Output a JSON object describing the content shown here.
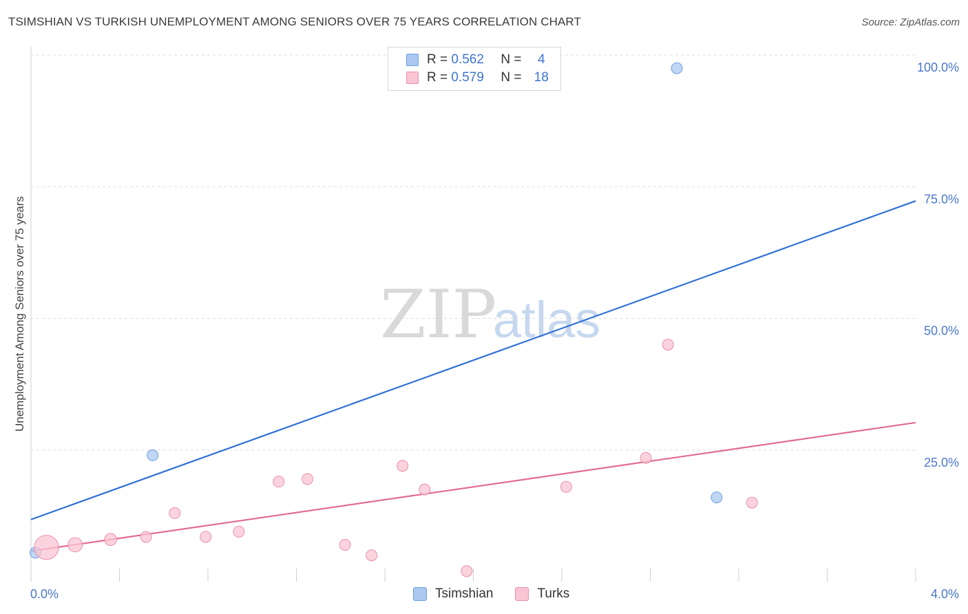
{
  "title": "TSIMSHIAN VS TURKISH UNEMPLOYMENT AMONG SENIORS OVER 75 YEARS CORRELATION CHART",
  "source": "Source: ZipAtlas.com",
  "watermark": {
    "zip": "ZIP",
    "atlas": "atlas"
  },
  "legend": {
    "rows": [
      {
        "r_label": "R = ",
        "r_value": "0.562",
        "n_label": "N = ",
        "n_value": "4",
        "color": "#aac8f0",
        "border": "#6f9fde"
      },
      {
        "r_label": "R = ",
        "r_value": "0.579",
        "n_label": "N = ",
        "n_value": "18",
        "color": "#f9c4d4",
        "border": "#e98fa9"
      }
    ]
  },
  "bottom_legend": [
    {
      "label": "Tsimshian",
      "color": "#aac8f0",
      "border": "#6f9fde"
    },
    {
      "label": "Turks",
      "color": "#f9c4d4",
      "border": "#e98fa9"
    }
  ],
  "chart_data": {
    "type": "scatter",
    "title": "TSIMSHIAN VS TURKISH UNEMPLOYMENT AMONG SENIORS OVER 75 YEARS CORRELATION CHART",
    "xlabel": "",
    "ylabel": "Unemployment Among Seniors over 75 years",
    "xlim": [
      0,
      4.0
    ],
    "ylim": [
      0,
      100
    ],
    "x_tick_labels": [
      "0.0%",
      "4.0%"
    ],
    "y_ticks": [
      25,
      50,
      75,
      100
    ],
    "y_tick_labels": [
      "25.0%",
      "50.0%",
      "75.0%",
      "100.0%"
    ],
    "grid": true,
    "series": [
      {
        "name": "Tsimshian",
        "color": "#aac8f0",
        "stroke": "#6f9fde",
        "line_color": "#2f6fd6",
        "trend": {
          "x": [
            0,
            4.0
          ],
          "y": [
            11.8,
            72.3
          ]
        },
        "points": [
          {
            "x": 0.02,
            "y": 5.5,
            "size": 1
          },
          {
            "x": 0.55,
            "y": 24.0,
            "size": 1
          },
          {
            "x": 2.92,
            "y": 97.5,
            "size": 1
          },
          {
            "x": 3.1,
            "y": 16.0,
            "size": 1
          }
        ]
      },
      {
        "name": "Turks",
        "color": "#f9c4d4",
        "stroke": "#e98fa9",
        "line_color": "#e26b93",
        "trend": {
          "x": [
            0,
            4.0
          ],
          "y": [
            5.8,
            30.2
          ]
        },
        "points": [
          {
            "x": 0.07,
            "y": 6.5,
            "size": 2.2
          },
          {
            "x": 0.2,
            "y": 7.0,
            "size": 1.3
          },
          {
            "x": 0.36,
            "y": 8.0,
            "size": 1.1
          },
          {
            "x": 0.52,
            "y": 8.5,
            "size": 1
          },
          {
            "x": 0.65,
            "y": 13.0,
            "size": 1
          },
          {
            "x": 0.79,
            "y": 8.5,
            "size": 1
          },
          {
            "x": 0.94,
            "y": 9.5,
            "size": 1
          },
          {
            "x": 1.12,
            "y": 19.0,
            "size": 1
          },
          {
            "x": 1.25,
            "y": 19.5,
            "size": 1
          },
          {
            "x": 1.42,
            "y": 7.0,
            "size": 1
          },
          {
            "x": 1.54,
            "y": 5.0,
            "size": 1
          },
          {
            "x": 1.68,
            "y": 22.0,
            "size": 1
          },
          {
            "x": 1.78,
            "y": 17.5,
            "size": 1
          },
          {
            "x": 1.97,
            "y": 2.0,
            "size": 1
          },
          {
            "x": 2.42,
            "y": 18.0,
            "size": 1
          },
          {
            "x": 2.78,
            "y": 23.5,
            "size": 1
          },
          {
            "x": 2.88,
            "y": 45.0,
            "size": 1
          },
          {
            "x": 3.26,
            "y": 15.0,
            "size": 1
          }
        ]
      }
    ]
  }
}
